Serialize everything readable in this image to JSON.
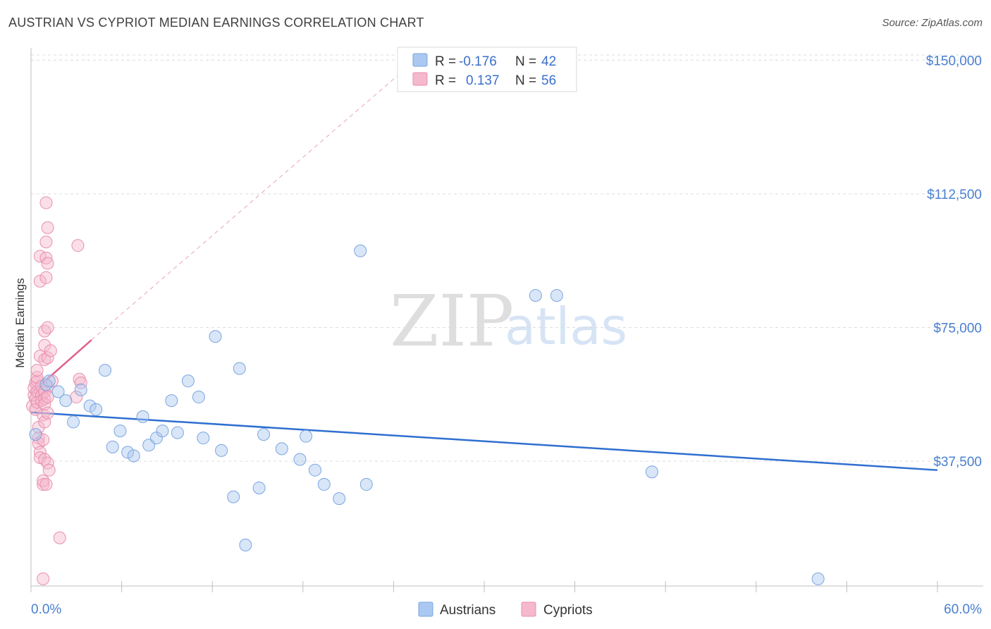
{
  "header": {
    "title": "AUSTRIAN VS CYPRIOT MEDIAN EARNINGS CORRELATION CHART",
    "source": "Source: ZipAtlas.com"
  },
  "watermark": {
    "zip": "ZIP",
    "atlas": "atlas"
  },
  "legend": {
    "r_label": "R =",
    "n_label": "N =",
    "rows": [
      {
        "series": "Austrians",
        "r": "-0.176",
        "n": "42"
      },
      {
        "series": "Cypriots",
        "r": "0.137",
        "n": "56"
      }
    ]
  },
  "bottom_legend": [
    "Austrians",
    "Cypriots"
  ],
  "colors": {
    "austrians_fill": "#aac8f0",
    "austrians_stroke": "#7aa6e0",
    "austrians_line": "#2f6fd0",
    "cypriots_fill": "#f5b8cc",
    "cypriots_stroke": "#e98fae",
    "cypriots_line": "#e0608f",
    "axis_text": "#4a7fd0"
  },
  "chart_data": {
    "type": "scatter",
    "title": "AUSTRIAN VS CYPRIOT MEDIAN EARNINGS CORRELATION CHART",
    "xlabel": "",
    "ylabel": "Median Earnings",
    "xlim": [
      0,
      60
    ],
    "ylim": [
      2500,
      155000
    ],
    "x_tick_labels": {
      "min": "0.0%",
      "max": "60.0%"
    },
    "y_ticks": [
      {
        "value": 37500,
        "label": "$37,500"
      },
      {
        "value": 75000,
        "label": "$75,000"
      },
      {
        "value": 112500,
        "label": "$112,500"
      },
      {
        "value": 150000,
        "label": "$150,000"
      }
    ],
    "grid": true,
    "series": [
      {
        "name": "Austrians",
        "r": -0.176,
        "n": 42,
        "trend": {
          "x0": 0,
          "y0": 51200,
          "x1": 60,
          "y1": 35000,
          "style": "solid"
        },
        "points": [
          [
            0.3,
            45000
          ],
          [
            1.0,
            59000
          ],
          [
            1.2,
            60000
          ],
          [
            1.8,
            57000
          ],
          [
            2.3,
            54500
          ],
          [
            2.8,
            48500
          ],
          [
            3.3,
            57500
          ],
          [
            3.9,
            53000
          ],
          [
            4.3,
            52000
          ],
          [
            4.9,
            63000
          ],
          [
            5.4,
            41500
          ],
          [
            5.9,
            46000
          ],
          [
            6.4,
            40000
          ],
          [
            6.8,
            39000
          ],
          [
            7.4,
            50000
          ],
          [
            7.8,
            42000
          ],
          [
            8.3,
            44000
          ],
          [
            8.7,
            46000
          ],
          [
            9.3,
            54500
          ],
          [
            9.7,
            45500
          ],
          [
            10.4,
            60000
          ],
          [
            11.1,
            55500
          ],
          [
            11.4,
            44000
          ],
          [
            12.2,
            72500
          ],
          [
            12.6,
            40500
          ],
          [
            13.4,
            27500
          ],
          [
            13.8,
            63500
          ],
          [
            14.2,
            14000
          ],
          [
            15.1,
            30000
          ],
          [
            15.4,
            45000
          ],
          [
            16.6,
            41000
          ],
          [
            17.8,
            38000
          ],
          [
            18.2,
            44500
          ],
          [
            18.8,
            35000
          ],
          [
            19.4,
            31000
          ],
          [
            20.4,
            27000
          ],
          [
            21.8,
            96500
          ],
          [
            22.2,
            31000
          ],
          [
            33.4,
            84000
          ],
          [
            34.8,
            84000
          ],
          [
            41.1,
            34500
          ],
          [
            52.1,
            4500
          ]
        ]
      },
      {
        "name": "Cypriots",
        "r": 0.137,
        "n": 56,
        "trend": {
          "x0": 0,
          "y0": 56500,
          "x1": 4.0,
          "y1": 71500,
          "style": "solid"
        },
        "trend_extension": {
          "x0": 4.0,
          "y0": 71500,
          "x1": 26.0,
          "y1": 152000,
          "style": "dashed"
        },
        "points": [
          [
            0.1,
            53000
          ],
          [
            0.2,
            56000
          ],
          [
            0.2,
            58000
          ],
          [
            0.3,
            59500
          ],
          [
            0.3,
            55000
          ],
          [
            0.3,
            52000
          ],
          [
            0.4,
            60000
          ],
          [
            0.4,
            61000
          ],
          [
            0.4,
            63000
          ],
          [
            0.4,
            57000
          ],
          [
            0.4,
            54000
          ],
          [
            0.5,
            47000
          ],
          [
            0.5,
            44000
          ],
          [
            0.5,
            42500
          ],
          [
            0.6,
            67000
          ],
          [
            0.6,
            88000
          ],
          [
            0.6,
            95000
          ],
          [
            0.6,
            40000
          ],
          [
            0.6,
            38500
          ],
          [
            0.7,
            58500
          ],
          [
            0.7,
            56000
          ],
          [
            0.7,
            54500
          ],
          [
            0.8,
            50500
          ],
          [
            0.8,
            43500
          ],
          [
            0.8,
            31000
          ],
          [
            0.8,
            32000
          ],
          [
            0.8,
            4500
          ],
          [
            0.9,
            66000
          ],
          [
            0.9,
            70000
          ],
          [
            0.9,
            74000
          ],
          [
            0.9,
            57000
          ],
          [
            0.9,
            55000
          ],
          [
            0.9,
            53500
          ],
          [
            0.9,
            48500
          ],
          [
            0.9,
            38000
          ],
          [
            1.0,
            94500
          ],
          [
            1.0,
            89000
          ],
          [
            1.0,
            99000
          ],
          [
            1.0,
            110000
          ],
          [
            1.0,
            31000
          ],
          [
            1.1,
            103000
          ],
          [
            1.1,
            93000
          ],
          [
            1.1,
            75000
          ],
          [
            1.1,
            66500
          ],
          [
            1.1,
            58500
          ],
          [
            1.1,
            55500
          ],
          [
            1.1,
            51000
          ],
          [
            1.1,
            37000
          ],
          [
            1.2,
            35000
          ],
          [
            1.3,
            68500
          ],
          [
            1.4,
            60000
          ],
          [
            1.9,
            16000
          ],
          [
            3.1,
            98000
          ],
          [
            3.2,
            60500
          ],
          [
            3.3,
            59500
          ],
          [
            3.0,
            55500
          ]
        ]
      }
    ]
  }
}
